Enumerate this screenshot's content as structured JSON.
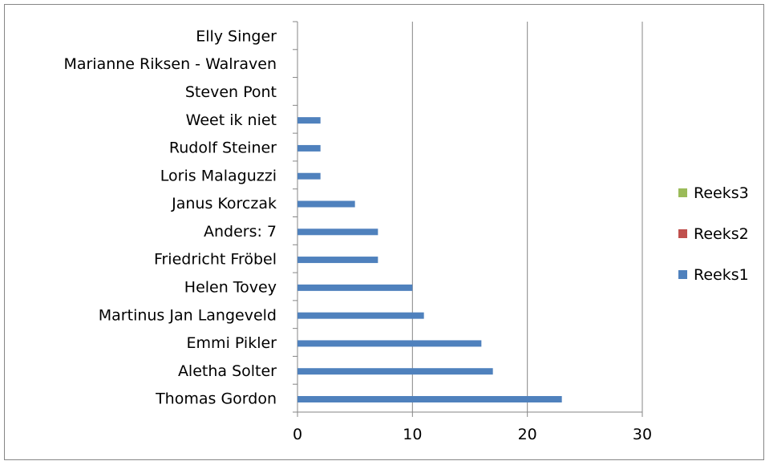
{
  "chart_data": {
    "type": "bar",
    "orientation": "horizontal",
    "categories": [
      "Thomas Gordon",
      "Aletha Solter",
      "Emmi Pikler",
      "Martinus Jan Langeveld",
      "Helen Tovey",
      "Friedricht Fröbel",
      "Anders: 7",
      "Janus Korczak",
      "Loris Malaguzzi",
      "Rudolf Steiner",
      "Weet ik niet",
      "Steven Pont",
      "Marianne Riksen - Walraven",
      "Elly Singer"
    ],
    "series": [
      {
        "name": "Reeks1",
        "color": "#4f81bd",
        "values": [
          23,
          17,
          16,
          11,
          10,
          7,
          7,
          5,
          2,
          2,
          2,
          0,
          0,
          0
        ]
      },
      {
        "name": "Reeks2",
        "color": "#c0504d",
        "values": [
          0,
          0,
          0,
          0,
          0,
          0,
          0,
          0,
          0,
          0,
          0,
          0,
          0,
          0
        ]
      },
      {
        "name": "Reeks3",
        "color": "#9bbb59",
        "values": [
          0,
          0,
          0,
          0,
          0,
          0,
          0,
          0,
          0,
          0,
          0,
          0,
          0,
          0
        ]
      }
    ],
    "xlim": [
      0,
      30
    ],
    "xticks": [
      "0",
      "10",
      "20",
      "30"
    ],
    "grid": true,
    "legend_position": "right",
    "legend_order": [
      "Reeks3",
      "Reeks2",
      "Reeks1"
    ]
  }
}
